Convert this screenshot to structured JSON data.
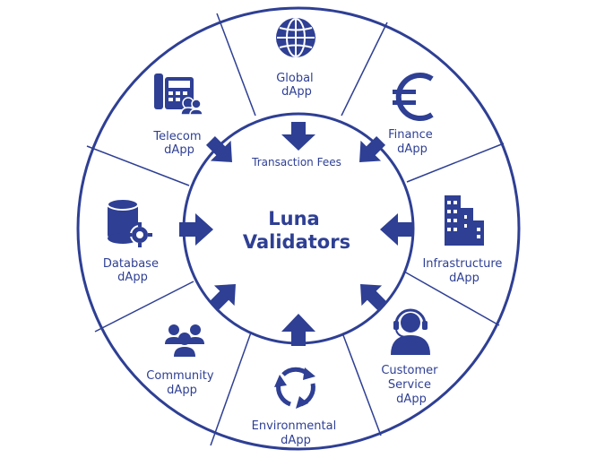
{
  "center": {
    "title_line1": "Luna",
    "title_line2": "Validators",
    "caption": "Transaction Fees"
  },
  "segments": [
    {
      "id": "global",
      "icon": "globe-icon",
      "lines": [
        "Global",
        "dApp"
      ]
    },
    {
      "id": "finance",
      "icon": "euro-icon",
      "lines": [
        "Finance",
        "dApp"
      ]
    },
    {
      "id": "infrastructure",
      "icon": "buildings-icon",
      "lines": [
        "Infrastructure",
        "dApp"
      ]
    },
    {
      "id": "customer-service",
      "icon": "headset-icon",
      "lines": [
        "Customer",
        "Service",
        "dApp"
      ]
    },
    {
      "id": "environmental",
      "icon": "recycle-icon",
      "lines": [
        "Environmental",
        "dApp"
      ]
    },
    {
      "id": "community",
      "icon": "people-icon",
      "lines": [
        "Community",
        "dApp"
      ]
    },
    {
      "id": "database",
      "icon": "database-gear-icon",
      "lines": [
        "Database",
        "dApp"
      ]
    },
    {
      "id": "telecom",
      "icon": "telephone-icon",
      "lines": [
        "Telecom",
        "dApp"
      ]
    }
  ],
  "colors": {
    "primary": "#2e3f94",
    "background": "#ffffff"
  }
}
